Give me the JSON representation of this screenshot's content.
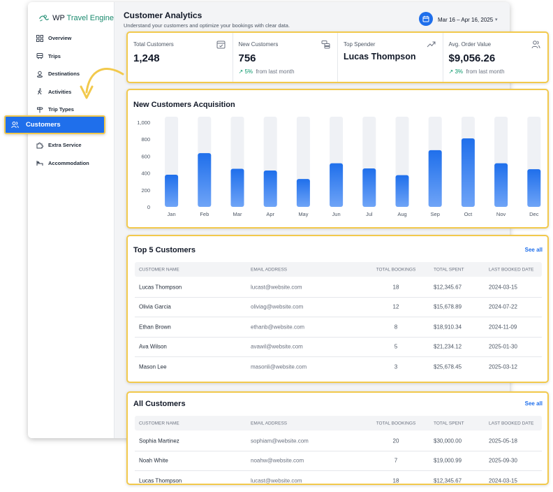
{
  "brand": {
    "name_part1": "WP ",
    "name_part2": "Travel Engine",
    "accent": "#1a8a6e"
  },
  "sidebar": {
    "items": [
      {
        "label": "Overview",
        "icon": "grid-icon"
      },
      {
        "label": "Trips",
        "icon": "bus-icon"
      },
      {
        "label": "Destinations",
        "icon": "pin-icon"
      },
      {
        "label": "Activities",
        "icon": "hiker-icon"
      },
      {
        "label": "Trip Types",
        "icon": "signpost-icon"
      },
      {
        "label": "Customers",
        "icon": "users-icon",
        "active": true
      },
      {
        "label": "Extra Service",
        "icon": "puzzle-icon"
      },
      {
        "label": "Accommodation",
        "icon": "bed-icon"
      }
    ]
  },
  "header": {
    "title": "Customer Analytics",
    "subtitle": "Understand your customers and optimize your bookings with clear data.",
    "date_range": "Mar 16 – Apr 16, 2025"
  },
  "stats": [
    {
      "label": "Total Customers",
      "value": "1,248",
      "icon": "calendar-check-icon"
    },
    {
      "label": "New Customers",
      "value": "756",
      "change": "5%",
      "change_text": "from last month",
      "icon": "coins-icon"
    },
    {
      "label": "Top Spender",
      "value": "Lucas Thompson",
      "icon": "trend-up-icon"
    },
    {
      "label": "Avg. Order Value",
      "value": "$9,056.26",
      "change": "3%",
      "change_text": "from last month",
      "icon": "users-icon"
    }
  ],
  "chart_data": {
    "type": "bar",
    "title": "New Customers Acquisition",
    "categories": [
      "Jan",
      "Feb",
      "Mar",
      "Apr",
      "May",
      "Jun",
      "Jul",
      "Aug",
      "Sep",
      "Oct",
      "Nov",
      "Dec"
    ],
    "values": [
      380,
      635,
      450,
      430,
      330,
      515,
      455,
      375,
      670,
      810,
      515,
      445
    ],
    "ylim": [
      0,
      1000
    ],
    "yticks": [
      "0",
      "200",
      "400",
      "600",
      "800",
      "1,000"
    ],
    "color": "#1f6feb",
    "track_color": "#eff1f5"
  },
  "top_customers": {
    "title": "Top 5 Customers",
    "see_all": "See all",
    "columns": [
      "CUSTOMER NAME",
      "EMAIL ADDRESS",
      "TOTAL BOOKINGS",
      "TOTAL SPENT",
      "LAST BOOKED DATE"
    ],
    "rows": [
      [
        "Lucas Thompson",
        "lucast@website.com",
        "18",
        "$12,345.67",
        "2024-03-15"
      ],
      [
        "Olivia Garcia",
        "oliviag@website.com",
        "12",
        "$15,678.89",
        "2024-07-22"
      ],
      [
        "Ethan Brown",
        "ethanb@website.com",
        "8",
        "$18,910.34",
        "2024-11-09"
      ],
      [
        "Ava Wilson",
        "avawil@website.com",
        "5",
        "$21,234.12",
        "2025-01-30"
      ],
      [
        "Mason Lee",
        "masonli@website.com",
        "3",
        "$25,678.45",
        "2025-03-12"
      ]
    ]
  },
  "all_customers": {
    "title": "All Customers",
    "see_all": "See all",
    "columns": [
      "CUSTOMER NAME",
      "EMAIL ADDRESS",
      "TOTAL BOOKINGS",
      "TOTAL SPENT",
      "LAST BOOKED DATE"
    ],
    "rows": [
      [
        "Sophia Martinez",
        "sophiam@website.com",
        "20",
        "$30,000.00",
        "2025-05-18"
      ],
      [
        "Noah White",
        "noahw@website.com",
        "7",
        "$19,000.99",
        "2025-09-30"
      ],
      [
        "Lucas Thompson",
        "lucast@website.com",
        "18",
        "$12,345.67",
        "2024-03-15"
      ]
    ]
  },
  "colors": {
    "highlight": "#f2c94c",
    "primary": "#1f6feb",
    "positive": "#059669"
  }
}
